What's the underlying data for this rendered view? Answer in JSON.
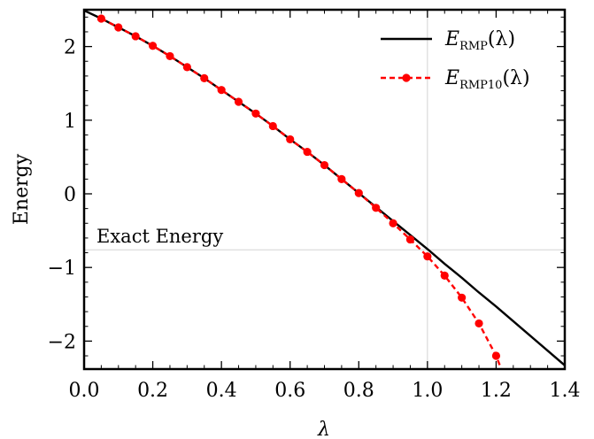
{
  "chart_data": {
    "type": "line",
    "title": "",
    "xlabel": "λ",
    "ylabel": "Energy",
    "xlim": [
      0.0,
      1.4
    ],
    "ylim": [
      -2.38,
      2.5
    ],
    "x_ticks": [
      "0.0",
      "0.2",
      "0.4",
      "0.6",
      "0.8",
      "1.0",
      "1.2",
      "1.4"
    ],
    "x_tick_values": [
      0.0,
      0.2,
      0.4,
      0.6,
      0.8,
      1.0,
      1.2,
      1.4
    ],
    "y_ticks": [
      "2",
      "1",
      "0",
      "−1",
      "−2"
    ],
    "y_tick_values": [
      2,
      1,
      0,
      -1,
      -2
    ],
    "grid": false,
    "legend_position": "top-right",
    "reference_lines": {
      "vertical_x": 1.0,
      "horizontal_y": -0.76,
      "horizontal_label": "Exact Energy",
      "color": "#d3d3d3"
    },
    "series": [
      {
        "name": "E_RMP(λ)",
        "legend_main": "E",
        "legend_sub": "RMP",
        "legend_arg": "(λ)",
        "color": "#000000",
        "style": "solid",
        "markers": false,
        "x": [
          0.0,
          0.05,
          0.1,
          0.15,
          0.2,
          0.25,
          0.3,
          0.35,
          0.4,
          0.45,
          0.5,
          0.55,
          0.6,
          0.65,
          0.7,
          0.75,
          0.8,
          0.85,
          0.9,
          0.95,
          1.0,
          1.05,
          1.1,
          1.15,
          1.2,
          1.25,
          1.3,
          1.35,
          1.4
        ],
        "values": [
          2.49,
          2.38,
          2.26,
          2.14,
          2.01,
          1.87,
          1.72,
          1.57,
          1.41,
          1.25,
          1.09,
          0.92,
          0.74,
          0.57,
          0.39,
          0.2,
          0.01,
          -0.18,
          -0.37,
          -0.56,
          -0.75,
          -0.95,
          -1.14,
          -1.34,
          -1.53,
          -1.73,
          -1.93,
          -2.13,
          -2.33
        ]
      },
      {
        "name": "E_RMP10(λ)",
        "legend_main": "E",
        "legend_sub": "RMP10",
        "legend_arg": "(λ)",
        "color": "#ff0000",
        "style": "dashed",
        "markers": true,
        "x": [
          0.05,
          0.1,
          0.15,
          0.2,
          0.25,
          0.3,
          0.35,
          0.4,
          0.45,
          0.5,
          0.55,
          0.6,
          0.65,
          0.7,
          0.75,
          0.8,
          0.85,
          0.9,
          0.95,
          1.0,
          1.05,
          1.1,
          1.15,
          1.2,
          1.215
        ],
        "values": [
          2.38,
          2.26,
          2.14,
          2.01,
          1.87,
          1.72,
          1.57,
          1.41,
          1.25,
          1.09,
          0.92,
          0.74,
          0.57,
          0.39,
          0.2,
          0.01,
          -0.19,
          -0.4,
          -0.62,
          -0.85,
          -1.11,
          -1.41,
          -1.76,
          -2.2,
          -2.38
        ],
        "marker_count": 24
      }
    ]
  }
}
